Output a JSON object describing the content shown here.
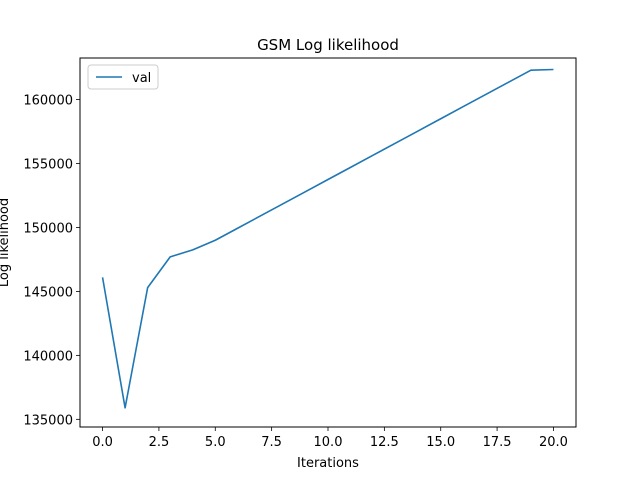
{
  "chart_data": {
    "type": "line",
    "title": "GSM Log likelihood",
    "xlabel": "Iterations",
    "ylabel": "Log likelihood",
    "xlim": [
      -1.0,
      21.0
    ],
    "ylim": [
      134400,
      163250
    ],
    "x_ticks": [
      0.0,
      2.5,
      5.0,
      7.5,
      10.0,
      12.5,
      15.0,
      17.5,
      20.0
    ],
    "x_tick_labels": [
      "0.0",
      "2.5",
      "5.0",
      "7.5",
      "10.0",
      "12.5",
      "15.0",
      "17.5",
      "20.0"
    ],
    "y_ticks": [
      135000,
      140000,
      145000,
      150000,
      155000,
      160000
    ],
    "y_tick_labels": [
      "135000",
      "140000",
      "145000",
      "150000",
      "155000",
      "160000"
    ],
    "grid": false,
    "legend": {
      "placement": "top-left",
      "entries": [
        "val"
      ]
    },
    "series": [
      {
        "name": "val",
        "color": "#1f77b4",
        "x": [
          0,
          1,
          2,
          3,
          4,
          5,
          6,
          7,
          8,
          9,
          10,
          11,
          12,
          13,
          14,
          15,
          16,
          17,
          18,
          19,
          20
        ],
        "values": [
          146100,
          135900,
          145300,
          147700,
          148250,
          149000,
          149950,
          150900,
          151850,
          152800,
          153750,
          154700,
          155650,
          156600,
          157550,
          158500,
          159450,
          160400,
          161350,
          162300,
          162350
        ]
      }
    ]
  }
}
